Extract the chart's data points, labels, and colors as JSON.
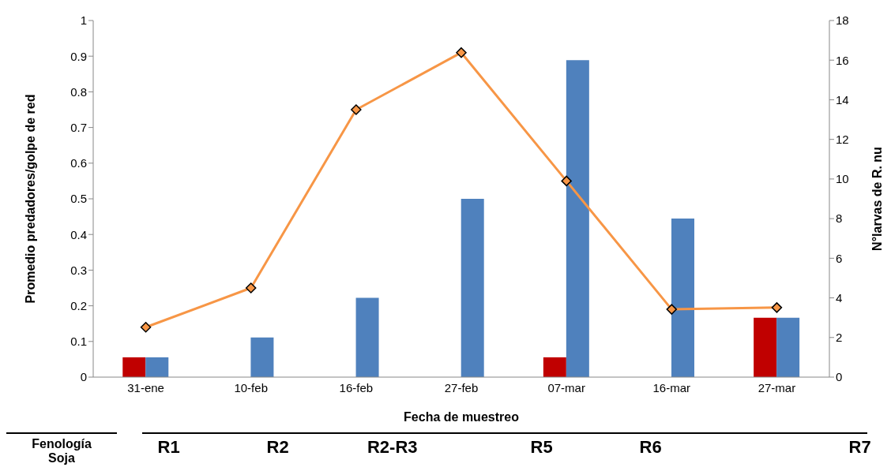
{
  "chart_data": {
    "type": "bar",
    "xlabel": "Fecha de muestreo",
    "ylabel": "Promedio predadores/golpe de red",
    "y2label": "N°larvas de R. nu",
    "categories": [
      "31-ene",
      "10-feb",
      "16-feb",
      "27-feb",
      "07-mar",
      "16-mar",
      "27-mar"
    ],
    "series": [
      {
        "axis": "y2",
        "color": "#c00000",
        "values": [
          1,
          null,
          null,
          null,
          1,
          null,
          3
        ]
      },
      {
        "axis": "y2",
        "color": "#4f81bd",
        "values": [
          1,
          2,
          4,
          9,
          16,
          8,
          3
        ]
      },
      {
        "type": "line",
        "color": "#f79646",
        "values": [
          0.14,
          0.25,
          0.75,
          0.91,
          0.55,
          0.19,
          0.195
        ]
      }
    ],
    "ylim": [
      0,
      1
    ],
    "yticks": [
      0,
      0.1,
      0.2,
      0.3,
      0.4,
      0.5,
      0.6,
      0.7,
      0.8,
      0.9,
      1
    ],
    "y2lim": [
      0,
      18
    ],
    "y2ticks": [
      0,
      2,
      4,
      6,
      8,
      10,
      12,
      14,
      16,
      18
    ],
    "marker": "diamond",
    "grid": false,
    "legend": false,
    "annotations": [
      "Fenología Soja",
      "R1",
      "R2",
      "R2-R3",
      "R5",
      "R6",
      "R7"
    ]
  }
}
